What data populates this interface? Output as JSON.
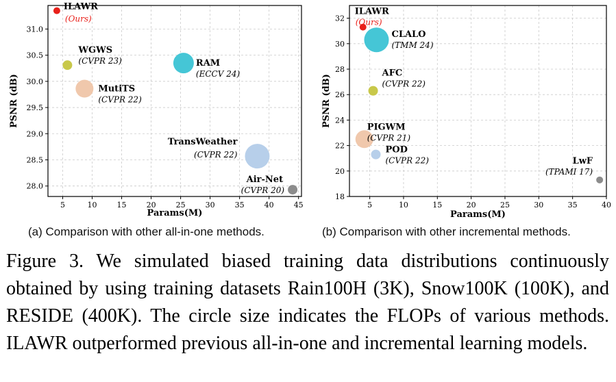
{
  "chart_data": [
    {
      "type": "scatter",
      "xlabel": "Params(M)",
      "ylabel": "PSNR (dB)",
      "xlim": [
        2.5,
        45.5
      ],
      "ylim": [
        27.8,
        31.45
      ],
      "xticks": [
        5,
        10,
        15,
        20,
        25,
        30,
        35,
        40,
        45
      ],
      "yticks": [
        28.0,
        28.5,
        29.0,
        29.5,
        30.0,
        30.5,
        31.0
      ],
      "ytick_decimals": 1,
      "grid": true,
      "points": [
        {
          "name": "ILAWR",
          "venue": "(Ours)",
          "x": 4.0,
          "y": 31.35,
          "size": "tiny",
          "color": "#e8201a",
          "venue_color": "#e8201a"
        },
        {
          "name": "WGWS",
          "venue": "(CVPR 23)",
          "x": 5.8,
          "y": 30.31,
          "size": "small",
          "color": "#c8c84a"
        },
        {
          "name": "MutiTS",
          "venue": "(CVPR 22)",
          "x": 8.7,
          "y": 29.86,
          "size": "medium",
          "color": "#f0c8ac"
        },
        {
          "name": "RAM",
          "venue": "(ECCV 24)",
          "x": 25.5,
          "y": 30.35,
          "size": "large",
          "color": "#45c6d6"
        },
        {
          "name": "TransWeather",
          "venue": "(CVPR 22)",
          "x": 38.0,
          "y": 28.57,
          "size": "xlarge",
          "color": "#b7cfea"
        },
        {
          "name": "Air-Net",
          "venue": "(CVPR 20)",
          "x": 44.0,
          "y": 27.93,
          "size": "small",
          "color": "#8c8c8c"
        }
      ]
    },
    {
      "type": "scatter",
      "xlabel": "Params(M)",
      "ylabel": "PSNR (dB)",
      "xlim": [
        2.0,
        40.0
      ],
      "ylim": [
        18.0,
        33.0
      ],
      "xticks": [
        5,
        10,
        15,
        20,
        25,
        30,
        35,
        40
      ],
      "yticks": [
        18,
        20,
        22,
        24,
        26,
        28,
        30,
        32
      ],
      "ytick_decimals": 0,
      "grid": true,
      "points": [
        {
          "name": "ILAWR",
          "venue": "(Ours)",
          "x": 4.0,
          "y": 31.3,
          "size": "tiny",
          "color": "#e8201a",
          "venue_color": "#e8201a"
        },
        {
          "name": "CLALO",
          "venue": "(TMM 24)",
          "x": 6.0,
          "y": 30.3,
          "size": "xlarge",
          "color": "#45c6d6"
        },
        {
          "name": "AFC",
          "venue": "(CVPR 22)",
          "x": 5.5,
          "y": 26.3,
          "size": "small",
          "color": "#c8c84a"
        },
        {
          "name": "PIGWM",
          "venue": "(CVPR 21)",
          "x": 4.2,
          "y": 22.5,
          "size": "medium",
          "color": "#f0c8ac"
        },
        {
          "name": "POD",
          "venue": "(CVPR 22)",
          "x": 5.9,
          "y": 21.3,
          "size": "small",
          "color": "#b7cfea"
        },
        {
          "name": "LwF",
          "venue": "(TPAMI 17)",
          "x": 39.0,
          "y": 19.3,
          "size": "tiny",
          "color": "#8c8c8c"
        }
      ]
    }
  ],
  "captions": {
    "a": "(a) Comparison with other all-in-one methods.",
    "b": "(b) Comparison with other incremental methods.",
    "figure": "Figure 3.  We simulated biased training data distributions continuously obtained by using training datasets Rain100H (3K), Snow100K (100K), and RESIDE (400K). The circle size indicates the FLOPs of various methods.  ILAWR outperformed previous all-in-one and incremental learning models."
  }
}
